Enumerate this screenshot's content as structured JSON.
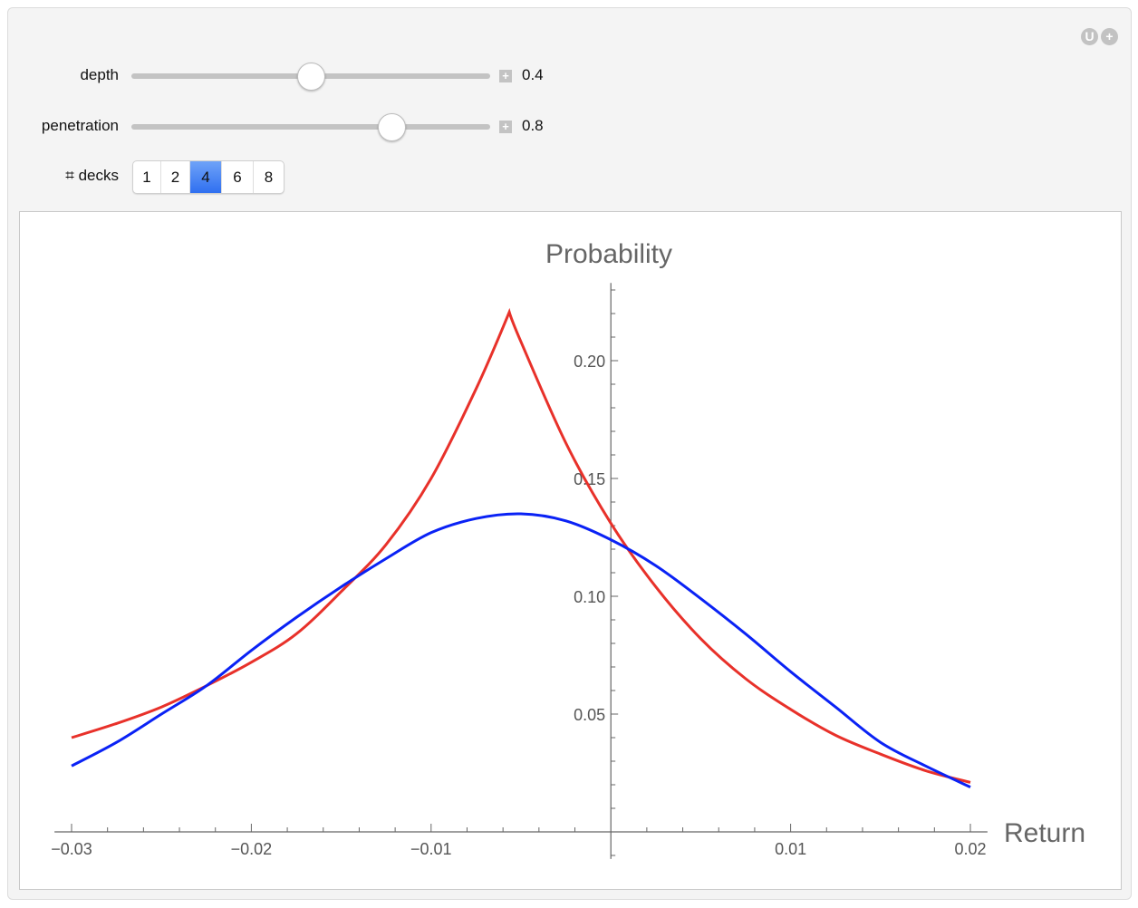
{
  "corner_icons": [
    "U",
    "+"
  ],
  "controls": {
    "depth": {
      "label": "depth",
      "value": "0.4",
      "slider_fraction": 0.5,
      "plus_icon": "+"
    },
    "penetration": {
      "label": "penetration",
      "value": "0.8",
      "slider_fraction": 0.725,
      "plus_icon": "+"
    },
    "decks": {
      "label": "⌗ decks",
      "options": [
        "1",
        "2",
        "4",
        "6",
        "8"
      ],
      "selected": "4",
      "accent": "#3b78f2"
    }
  },
  "chart_data": {
    "type": "line",
    "title": "",
    "xlabel": "Return",
    "ylabel": "Probability",
    "xlim": [
      -0.031,
      0.0208
    ],
    "ylim": [
      -0.0115,
      0.233
    ],
    "x_ticks": [
      "-0.03",
      "-0.02",
      "-0.01",
      "0.01",
      "0.02"
    ],
    "x_tick_values": [
      -0.03,
      -0.02,
      -0.01,
      0.01,
      0.02
    ],
    "y_ticks": [
      "0.05",
      "0.10",
      "0.15",
      "0.20"
    ],
    "y_tick_values": [
      0.05,
      0.1,
      0.15,
      0.2
    ],
    "grid": false,
    "series": [
      {
        "color": "#e8312a",
        "x": [
          -0.03,
          -0.0275,
          -0.025,
          -0.0225,
          -0.02,
          -0.0175,
          -0.015,
          -0.0125,
          -0.01,
          -0.0075,
          -0.00565,
          -0.005,
          -0.0025,
          0,
          0.0025,
          0.005,
          0.0075,
          0.01,
          0.0125,
          0.015,
          0.0175,
          0.02
        ],
        "y": [
          0.04,
          0.046,
          0.053,
          0.062,
          0.072,
          0.084,
          0.102,
          0.122,
          0.15,
          0.188,
          0.2206,
          0.208,
          0.165,
          0.131,
          0.104,
          0.082,
          0.065,
          0.052,
          0.041,
          0.033,
          0.026,
          0.021
        ]
      },
      {
        "color": "#0a22f5",
        "x": [
          -0.03,
          -0.0275,
          -0.025,
          -0.0225,
          -0.02,
          -0.0175,
          -0.015,
          -0.0125,
          -0.01,
          -0.0075,
          -0.005,
          -0.0025,
          0,
          0.0025,
          0.005,
          0.0075,
          0.01,
          0.0125,
          0.015,
          0.0175,
          0.02
        ],
        "y": [
          0.028,
          0.038,
          0.05,
          0.062,
          0.077,
          0.091,
          0.104,
          0.116,
          0.127,
          0.133,
          0.135,
          0.132,
          0.124,
          0.113,
          0.099,
          0.084,
          0.068,
          0.053,
          0.038,
          0.028,
          0.019
        ]
      }
    ]
  }
}
